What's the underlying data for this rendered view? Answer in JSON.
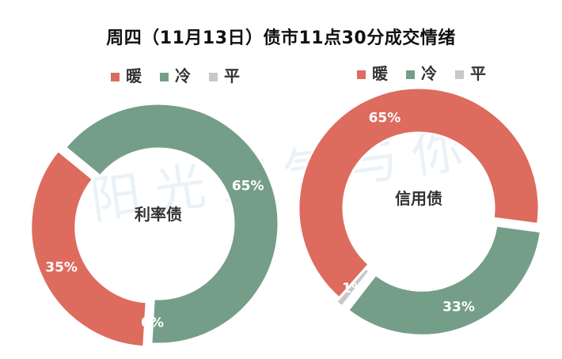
{
  "title": "周四（11月13日）债市11点30分成交情绪",
  "watermark": "@阳光空气与你",
  "colors": {
    "warm": "#dd6b5e",
    "cold": "#759e89",
    "flat": "#c8c8c8"
  },
  "chart_data": [
    {
      "type": "pie",
      "center_label": "利率债",
      "legend": [
        "暖",
        "冷",
        "平"
      ],
      "legend_position": "top",
      "slices": [
        {
          "name": "暖",
          "value": 35,
          "label": "35%"
        },
        {
          "name": "冷",
          "value": 65,
          "label": "65%"
        },
        {
          "name": "平",
          "value": 0,
          "label": "0%"
        }
      ]
    },
    {
      "type": "pie",
      "center_label": "信用债",
      "legend": [
        "暖",
        "冷",
        "平"
      ],
      "legend_position": "top",
      "slices": [
        {
          "name": "暖",
          "value": 65,
          "label": "65%"
        },
        {
          "name": "冷",
          "value": 33,
          "label": "33%"
        },
        {
          "name": "平",
          "value": 1,
          "label": "1%"
        }
      ]
    }
  ]
}
